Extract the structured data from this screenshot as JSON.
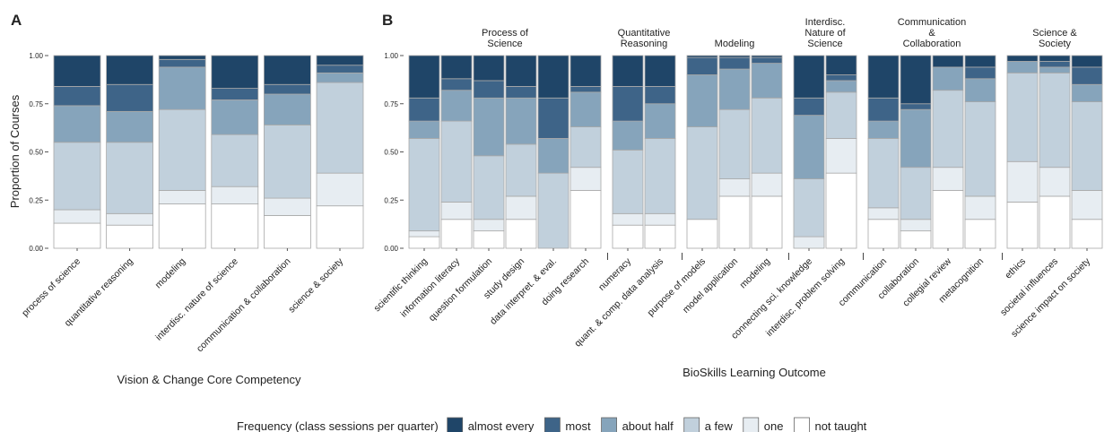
{
  "colors": {
    "almost every": "#1f4568",
    "most": "#3e6488",
    "about half": "#86a4bb",
    "a few": "#c1d0dc",
    "one": "#e7edf2",
    "not taught": "#ffffff"
  },
  "levels_bottom_to_top": [
    "not taught",
    "one",
    "a few",
    "about half",
    "most",
    "almost every"
  ],
  "legend": {
    "title": "Frequency (class sessions per quarter)",
    "items": [
      "almost every",
      "most",
      "about half",
      "a few",
      "one",
      "not taught"
    ]
  },
  "chart_data": [
    {
      "type": "bar",
      "stacked": true,
      "panel_label": "A",
      "xlabel": "Vision & Change Core Competency",
      "ylabel": "Proportion of Courses",
      "ylim": [
        0,
        1
      ],
      "yticks": [
        "0.00",
        "0.25",
        "0.50",
        "0.75",
        "1.00"
      ],
      "categories": [
        "process of science",
        "quantitative reasoning",
        "modeling",
        "interdisc. nature of science",
        "communication & collaboration",
        "science & society"
      ],
      "series": [
        {
          "name": "not taught",
          "values": [
            0.13,
            0.12,
            0.23,
            0.23,
            0.17,
            0.22
          ]
        },
        {
          "name": "one",
          "values": [
            0.07,
            0.06,
            0.07,
            0.09,
            0.09,
            0.17
          ]
        },
        {
          "name": "a few",
          "values": [
            0.35,
            0.37,
            0.42,
            0.27,
            0.38,
            0.47
          ]
        },
        {
          "name": "about half",
          "values": [
            0.19,
            0.16,
            0.22,
            0.18,
            0.16,
            0.05
          ]
        },
        {
          "name": "most",
          "values": [
            0.1,
            0.14,
            0.04,
            0.06,
            0.05,
            0.04
          ]
        },
        {
          "name": "almost every",
          "values": [
            0.16,
            0.15,
            0.02,
            0.17,
            0.15,
            0.05
          ]
        }
      ]
    },
    {
      "type": "bar",
      "stacked": true,
      "panel_label": "B",
      "xlabel": "BioSkills Learning Outcome",
      "ylim": [
        0,
        1
      ],
      "yticks": [
        "0.00",
        "0.25",
        "0.50",
        "0.75",
        "1.00"
      ],
      "groups": [
        {
          "title": [
            "Process of",
            "Science"
          ],
          "categories": [
            "scientific thinking",
            "information literacy",
            "question formulation",
            "study design",
            "data interpret. & eval.",
            "doing research"
          ]
        },
        {
          "title": [
            "Quantitative",
            "Reasoning"
          ],
          "categories": [
            "numeracy",
            "quant. & comp. data analysis"
          ]
        },
        {
          "title": [
            "Modeling"
          ],
          "categories": [
            "purpose of models",
            "model application",
            "modeling"
          ]
        },
        {
          "title": [
            "Interdisc.",
            "Nature of",
            "Science"
          ],
          "categories": [
            "connecting sci. knowledge",
            "interdisc. problem solving"
          ]
        },
        {
          "title": [
            "Communication",
            "&",
            "Collaboration"
          ],
          "categories": [
            "communication",
            "collaboration",
            "collegial review",
            "metacognition"
          ]
        },
        {
          "title": [
            "Science &",
            "Society"
          ],
          "categories": [
            "ethics",
            "societal influences",
            "science impact on society"
          ]
        }
      ],
      "series": [
        {
          "name": "not taught",
          "values": [
            0.06,
            0.15,
            0.09,
            0.15,
            0.0,
            0.3,
            0.12,
            0.12,
            0.15,
            0.27,
            0.27,
            0.0,
            0.39,
            0.15,
            0.09,
            0.3,
            0.15,
            0.24,
            0.27,
            0.15
          ]
        },
        {
          "name": "one",
          "values": [
            0.03,
            0.09,
            0.06,
            0.12,
            0.0,
            0.12,
            0.06,
            0.06,
            0.0,
            0.09,
            0.12,
            0.06,
            0.18,
            0.06,
            0.06,
            0.12,
            0.12,
            0.21,
            0.15,
            0.15
          ]
        },
        {
          "name": "a few",
          "values": [
            0.48,
            0.42,
            0.33,
            0.27,
            0.39,
            0.21,
            0.33,
            0.39,
            0.48,
            0.36,
            0.39,
            0.3,
            0.24,
            0.36,
            0.27,
            0.4,
            0.49,
            0.46,
            0.49,
            0.46
          ]
        },
        {
          "name": "about half",
          "values": [
            0.09,
            0.16,
            0.3,
            0.24,
            0.18,
            0.18,
            0.15,
            0.18,
            0.27,
            0.21,
            0.18,
            0.33,
            0.06,
            0.09,
            0.3,
            0.12,
            0.12,
            0.06,
            0.03,
            0.09
          ]
        },
        {
          "name": "most",
          "values": [
            0.12,
            0.06,
            0.09,
            0.06,
            0.21,
            0.03,
            0.18,
            0.09,
            0.09,
            0.06,
            0.03,
            0.09,
            0.03,
            0.12,
            0.03,
            0.0,
            0.06,
            0.0,
            0.03,
            0.09
          ]
        },
        {
          "name": "almost every",
          "values": [
            0.22,
            0.12,
            0.13,
            0.16,
            0.22,
            0.16,
            0.16,
            0.16,
            0.01,
            0.01,
            0.01,
            0.22,
            0.1,
            0.22,
            0.25,
            0.06,
            0.06,
            0.03,
            0.03,
            0.06
          ]
        }
      ]
    }
  ]
}
